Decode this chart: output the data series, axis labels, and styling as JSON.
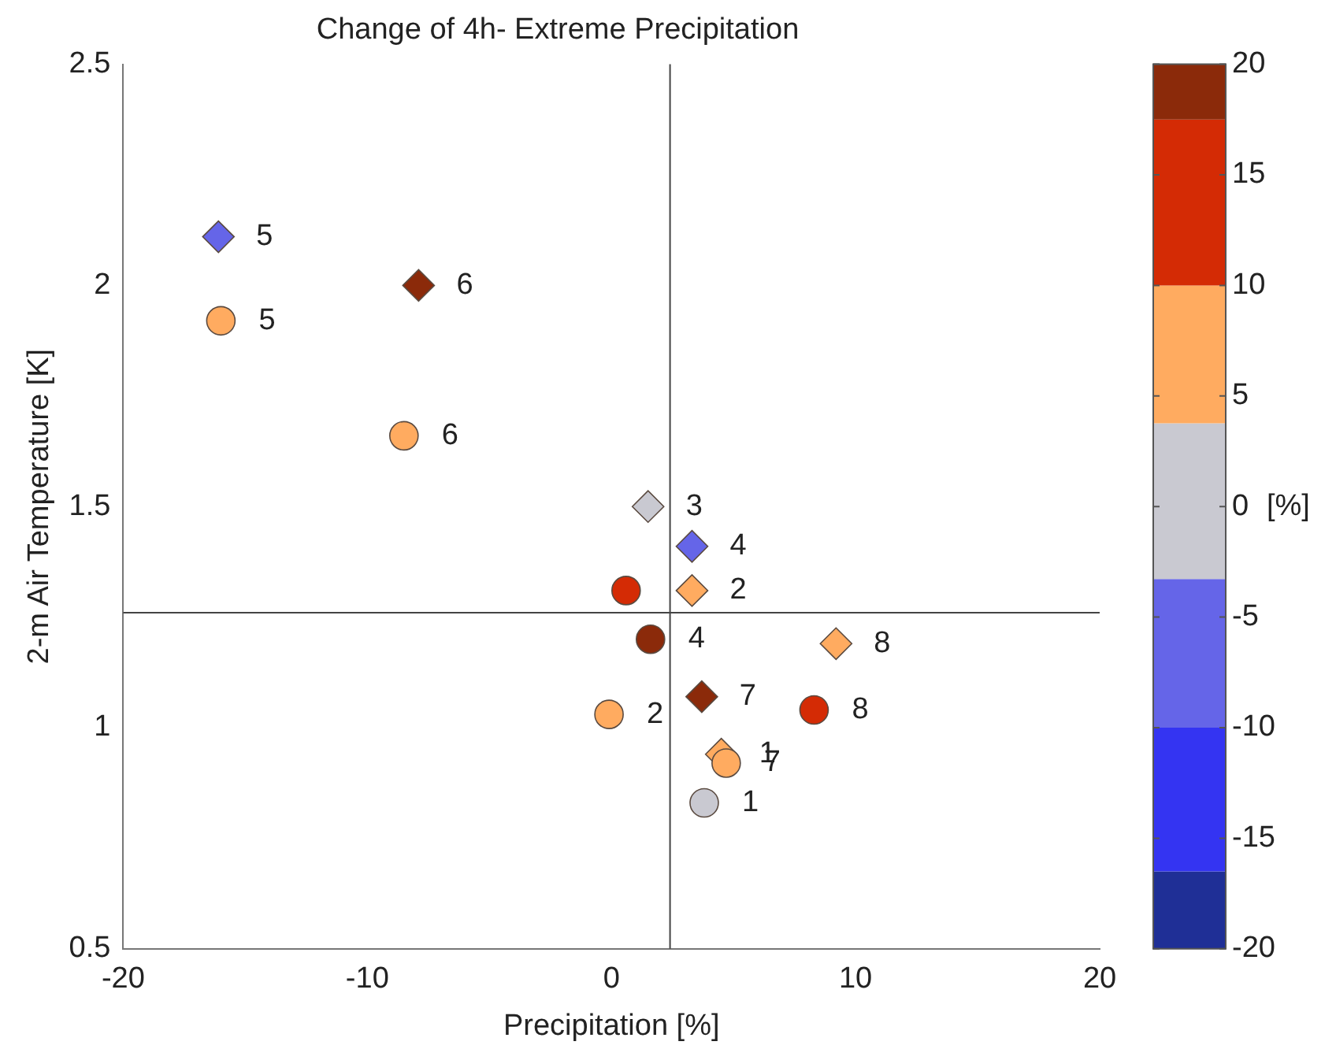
{
  "chart_data": {
    "type": "scatter",
    "title": "Change of 4h- Extreme Precipitation",
    "xlabel": "Precipitation [%]",
    "ylabel": "2-m Air Temperature [K]",
    "clabel": "[%]",
    "xlim": [
      -20,
      20
    ],
    "xticks": [
      -20,
      -10,
      0,
      10,
      20
    ],
    "ylim": [
      0.5,
      2.5
    ],
    "yticks": [
      0.5,
      1,
      1.5,
      2,
      2.5
    ],
    "clim": [
      -20,
      20
    ],
    "cticks": [
      -20,
      -15,
      -10,
      -5,
      0,
      5,
      10,
      15,
      20
    ],
    "grid": false,
    "legend": false,
    "ref_lines": [
      {
        "axis": "x",
        "value": 2.4
      },
      {
        "axis": "y",
        "value": 1.26
      }
    ],
    "annotations": [
      {
        "text": "5",
        "x": -16.1,
        "y": 2.11
      },
      {
        "text": "6",
        "x": -7.9,
        "y": 2.0
      },
      {
        "text": "3",
        "x": 1.5,
        "y": 1.5
      },
      {
        "text": "4",
        "x": 3.3,
        "y": 1.41
      },
      {
        "text": "2",
        "x": 3.3,
        "y": 1.31
      },
      {
        "text": "8",
        "x": 9.2,
        "y": 1.19
      },
      {
        "text": "7",
        "x": 3.7,
        "y": 1.07
      },
      {
        "text": "1",
        "x": 4.5,
        "y": 0.94
      },
      {
        "text": "5",
        "x": -16.0,
        "y": 1.92
      },
      {
        "text": "6",
        "x": -8.5,
        "y": 1.66
      },
      {
        "text": "4",
        "x": 1.6,
        "y": 1.2
      },
      {
        "text": "2",
        "x": -0.1,
        "y": 1.03
      },
      {
        "text": "8",
        "x": 8.3,
        "y": 1.04
      },
      {
        "text": "7",
        "x": 4.7,
        "y": 0.92
      },
      {
        "text": "1",
        "x": 3.8,
        "y": 0.83
      }
    ],
    "series": [
      {
        "marker": "diamond",
        "x": [
          -16.1,
          -7.9,
          1.5,
          3.3,
          3.3,
          9.2,
          3.7,
          4.5
        ],
        "values": [
          2.11,
          2.0,
          1.5,
          1.41,
          1.31,
          1.19,
          1.07,
          0.94
        ],
        "colors": [
          "#6565e8",
          "#8b2a0a",
          "#c9c9d1",
          "#6565e8",
          "#ffab60",
          "#ffab60",
          "#8b2a0a",
          "#ffab60"
        ]
      },
      {
        "marker": "circle",
        "x": [
          -16.0,
          -8.5,
          0.6,
          1.6,
          -0.1,
          8.3,
          4.7,
          3.8
        ],
        "values": [
          1.92,
          1.66,
          1.31,
          1.2,
          1.03,
          1.04,
          0.92,
          0.83
        ],
        "colors": [
          "#ffab60",
          "#ffab60",
          "#d42b05",
          "#8b2a0a",
          "#ffab60",
          "#d42b05",
          "#ffab60",
          "#c9c9d1"
        ]
      }
    ]
  }
}
